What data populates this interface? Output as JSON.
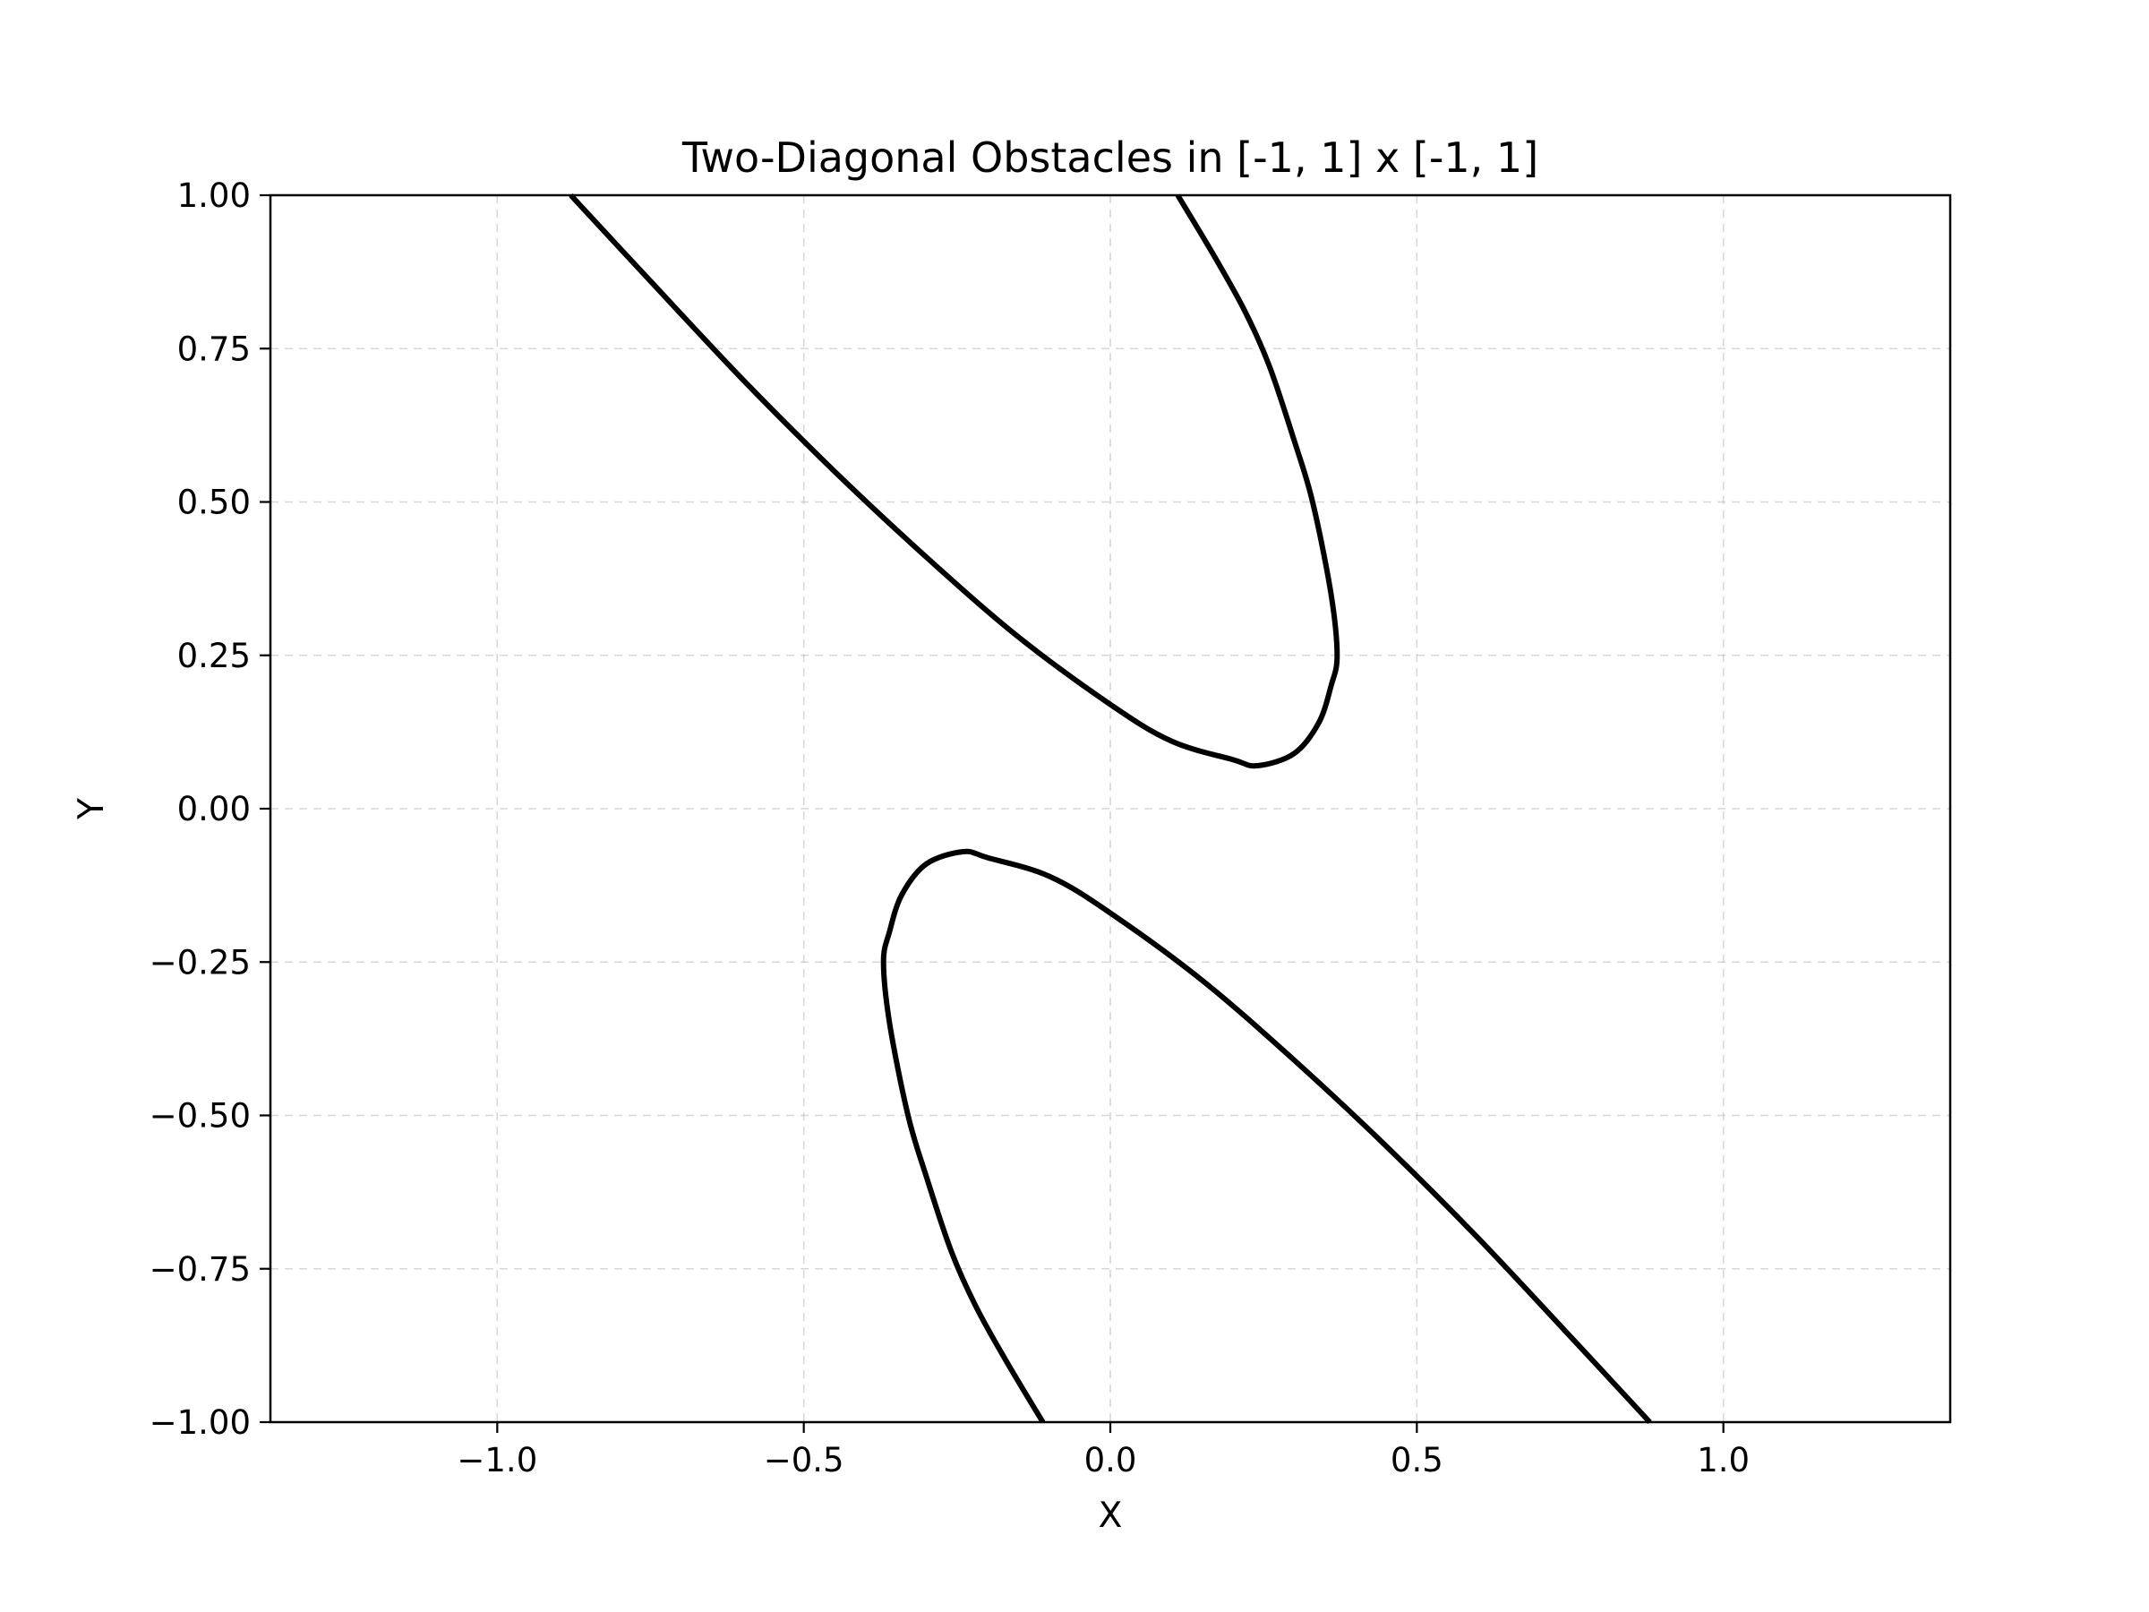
{
  "chart_data": {
    "type": "line",
    "title": "Two-Diagonal Obstacles in [-1, 1] x [-1, 1]",
    "xlabel": "X",
    "ylabel": "Y",
    "xlim": [
      -1.37,
      1.37
    ],
    "ylim": [
      -1.0,
      1.0
    ],
    "xticks": [
      -1.0,
      -0.5,
      0.0,
      0.5,
      1.0
    ],
    "xtick_labels": [
      "−1.0",
      "−0.5",
      "0.0",
      "0.5",
      "1.0"
    ],
    "yticks": [
      1.0,
      0.75,
      0.5,
      0.25,
      0.0,
      -0.25,
      -0.5,
      -0.75,
      -1.0
    ],
    "ytick_labels": [
      "1.00",
      "0.75",
      "0.50",
      "0.25",
      "0.00",
      "−0.25",
      "−0.50",
      "−0.75",
      "−1.00"
    ],
    "grid": true,
    "series": [
      {
        "color": "#000000",
        "x": [
          -0.88,
          -0.75,
          -0.6,
          -0.45,
          -0.3,
          -0.15,
          0.0,
          0.1,
          0.2,
          0.24,
          0.3,
          0.34,
          0.36,
          0.37,
          0.36,
          0.33,
          0.3,
          0.26,
          0.22,
          0.17,
          0.11
        ],
        "y": [
          1.0,
          0.86,
          0.7,
          0.55,
          0.41,
          0.28,
          0.17,
          0.11,
          0.08,
          0.07,
          0.09,
          0.14,
          0.2,
          0.25,
          0.35,
          0.5,
          0.6,
          0.72,
          0.81,
          0.9,
          1.0
        ]
      },
      {
        "color": "#000000",
        "x": [
          0.88,
          0.75,
          0.6,
          0.45,
          0.3,
          0.15,
          0.0,
          -0.1,
          -0.2,
          -0.24,
          -0.3,
          -0.34,
          -0.36,
          -0.37,
          -0.36,
          -0.33,
          -0.3,
          -0.26,
          -0.22,
          -0.17,
          -0.11
        ],
        "y": [
          -1.0,
          -0.86,
          -0.7,
          -0.55,
          -0.41,
          -0.28,
          -0.17,
          -0.11,
          -0.08,
          -0.07,
          -0.09,
          -0.14,
          -0.2,
          -0.25,
          -0.35,
          -0.5,
          -0.6,
          -0.72,
          -0.81,
          -0.9,
          -1.0
        ]
      }
    ]
  }
}
